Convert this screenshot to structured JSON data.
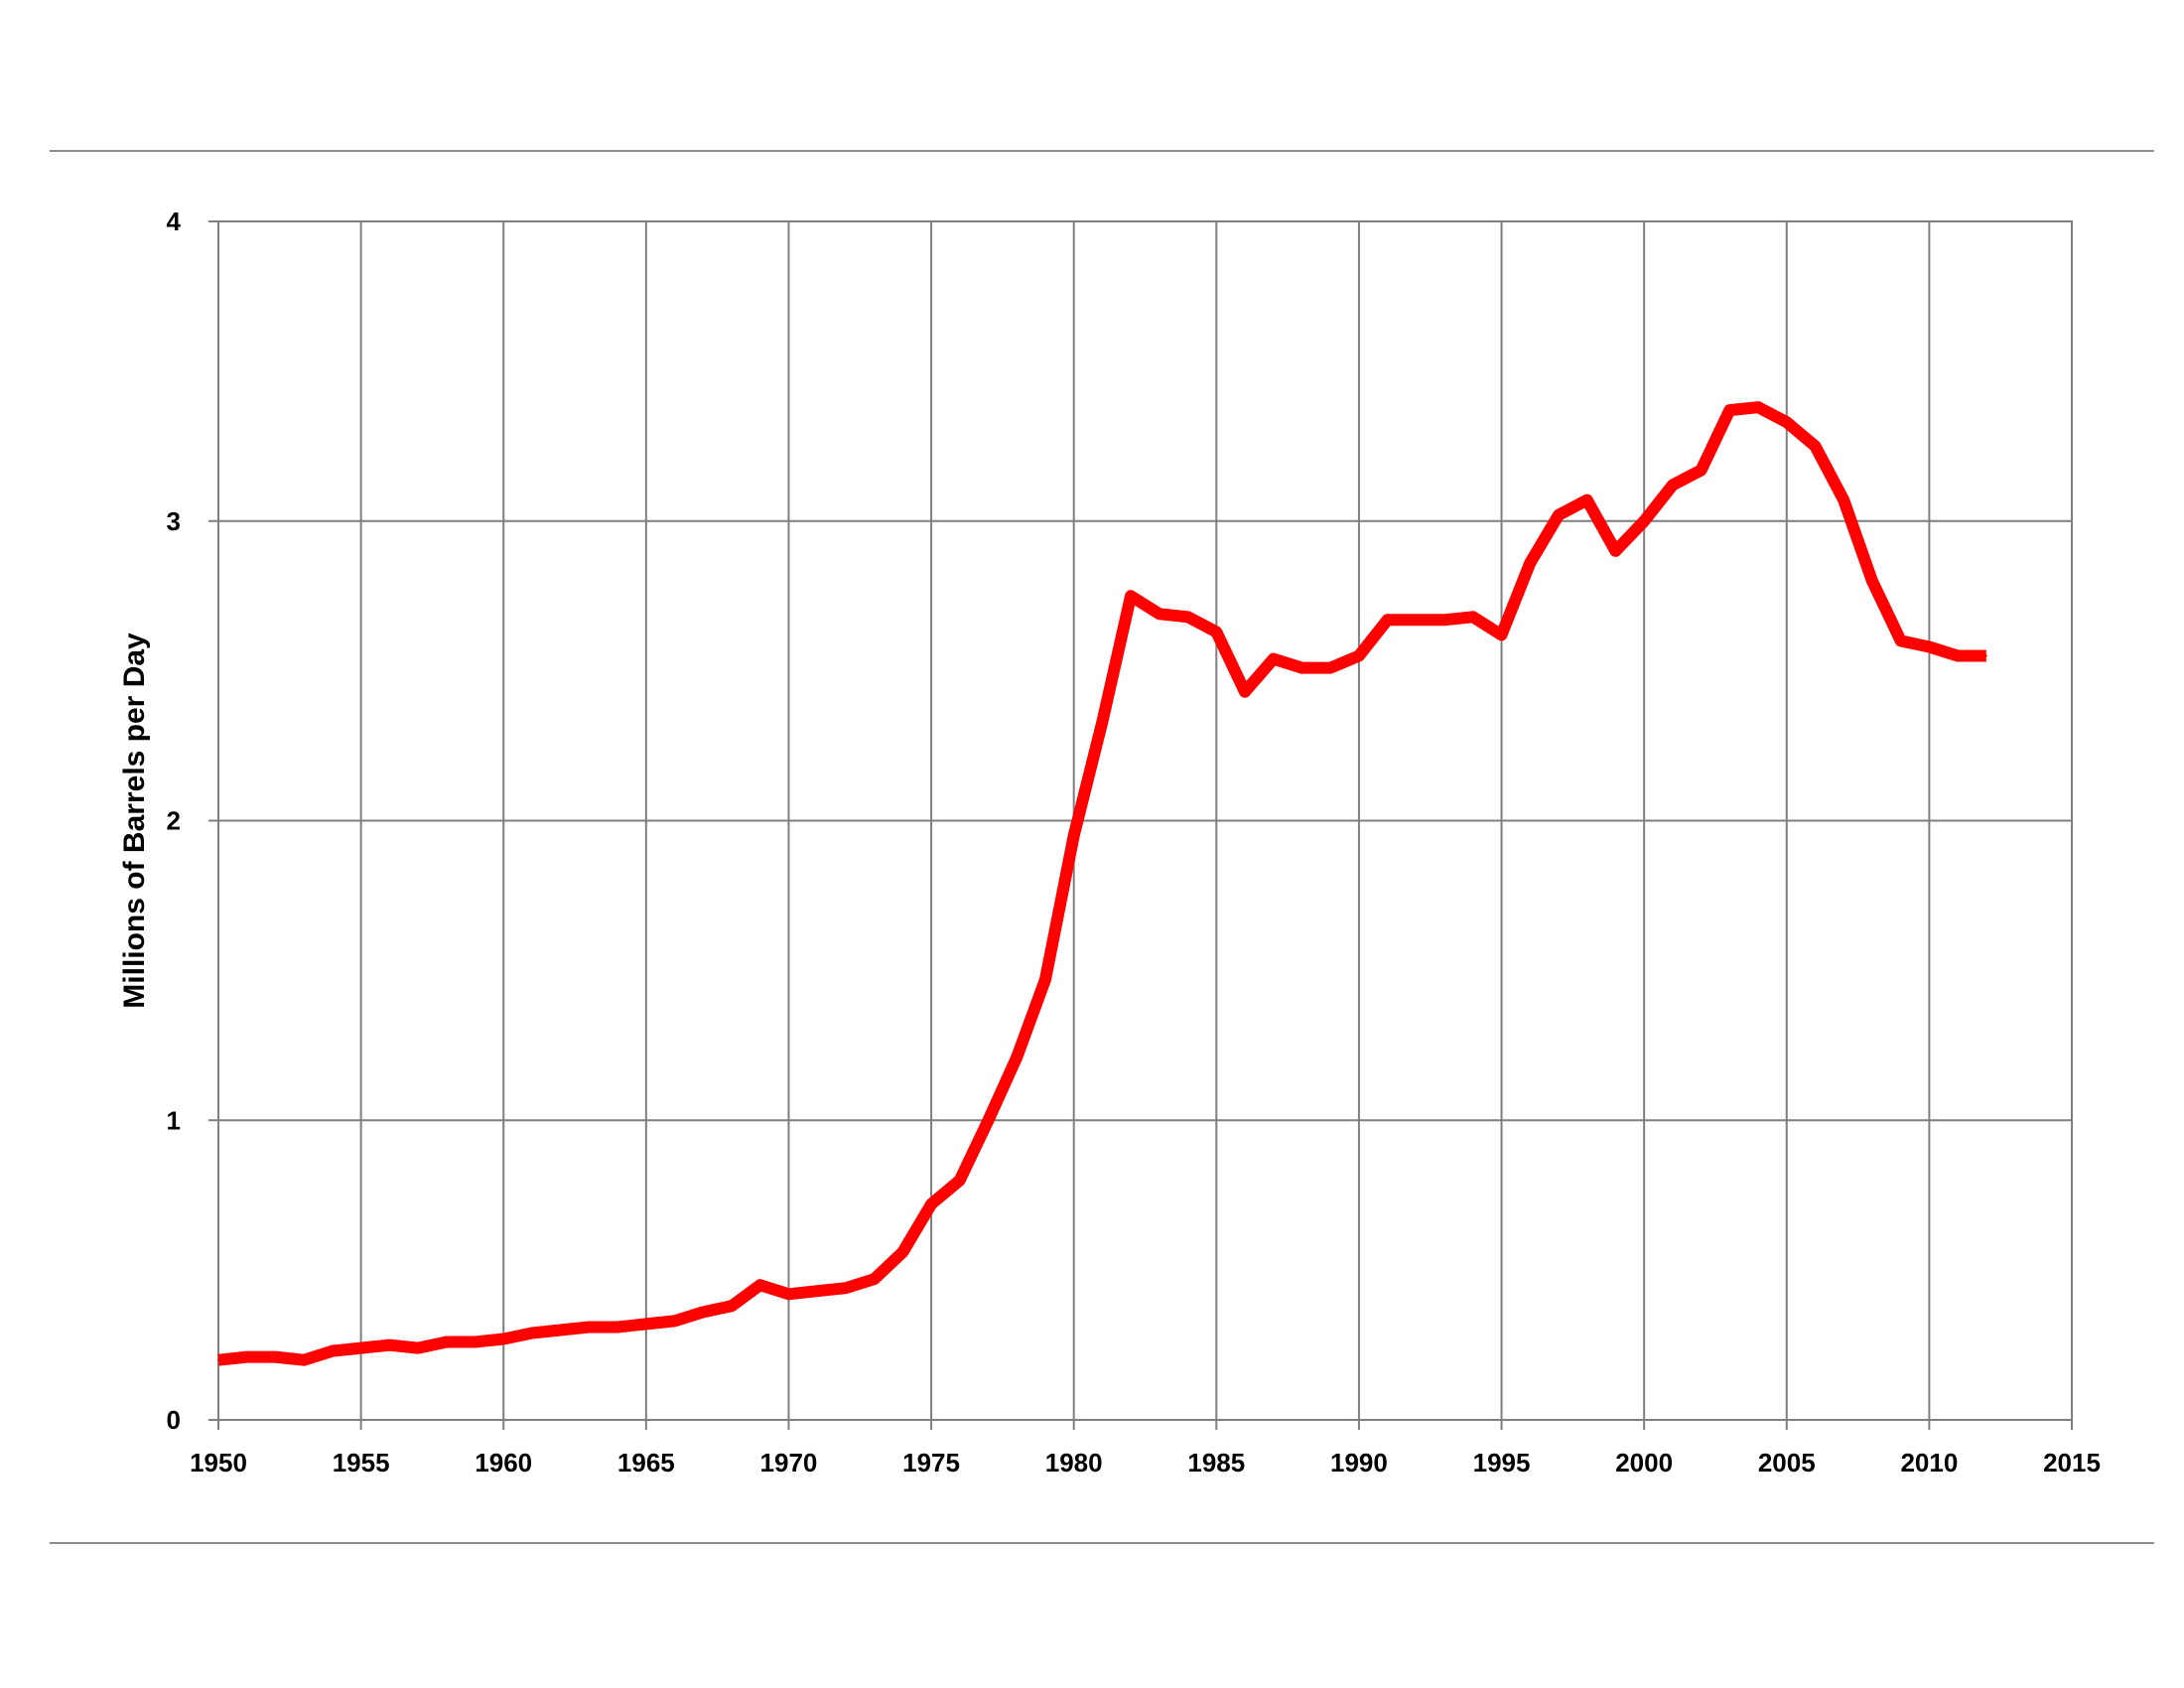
{
  "chart_data": {
    "type": "line",
    "title": "",
    "xlabel": "",
    "ylabel": "Millions of Barrels per Day",
    "xlim": [
      1950,
      2015
    ],
    "ylim": [
      0,
      4
    ],
    "x_ticks": [
      1950,
      1955,
      1960,
      1965,
      1970,
      1975,
      1980,
      1985,
      1990,
      1995,
      2000,
      2005,
      2010,
      2015
    ],
    "y_ticks": [
      0,
      1,
      2,
      3,
      4
    ],
    "grid": true,
    "legend": "none",
    "series": [
      {
        "color": "#ff0000",
        "x": [
          1950,
          1951,
          1952,
          1953,
          1954,
          1955,
          1956,
          1957,
          1958,
          1959,
          1960,
          1961,
          1962,
          1963,
          1964,
          1965,
          1966,
          1967,
          1968,
          1969,
          1970,
          1971,
          1972,
          1973,
          1974,
          1975,
          1976,
          1977,
          1978,
          1979,
          1980,
          1981,
          1982,
          1983,
          1984,
          1985,
          1986,
          1987,
          1988,
          1989,
          1990,
          1991,
          1992,
          1993,
          1994,
          1995,
          1996,
          1997,
          1998,
          1999,
          2000,
          2001,
          2002,
          2003,
          2004,
          2005,
          2006,
          2007,
          2008,
          2009,
          2010,
          2011,
          2012
        ],
        "values": [
          0.2,
          0.21,
          0.21,
          0.2,
          0.23,
          0.24,
          0.25,
          0.24,
          0.26,
          0.26,
          0.27,
          0.29,
          0.3,
          0.31,
          0.31,
          0.32,
          0.33,
          0.36,
          0.38,
          0.45,
          0.42,
          0.43,
          0.44,
          0.47,
          0.56,
          0.72,
          0.8,
          1.0,
          1.21,
          1.47,
          1.95,
          2.33,
          2.75,
          2.69,
          2.68,
          2.63,
          2.43,
          2.54,
          2.51,
          2.51,
          2.55,
          2.67,
          2.67,
          2.67,
          2.68,
          2.62,
          2.86,
          3.02,
          3.07,
          2.9,
          3.0,
          3.12,
          3.17,
          3.37,
          3.38,
          3.33,
          3.25,
          3.07,
          2.8,
          2.6,
          2.58,
          2.55,
          2.55
        ]
      }
    ]
  }
}
